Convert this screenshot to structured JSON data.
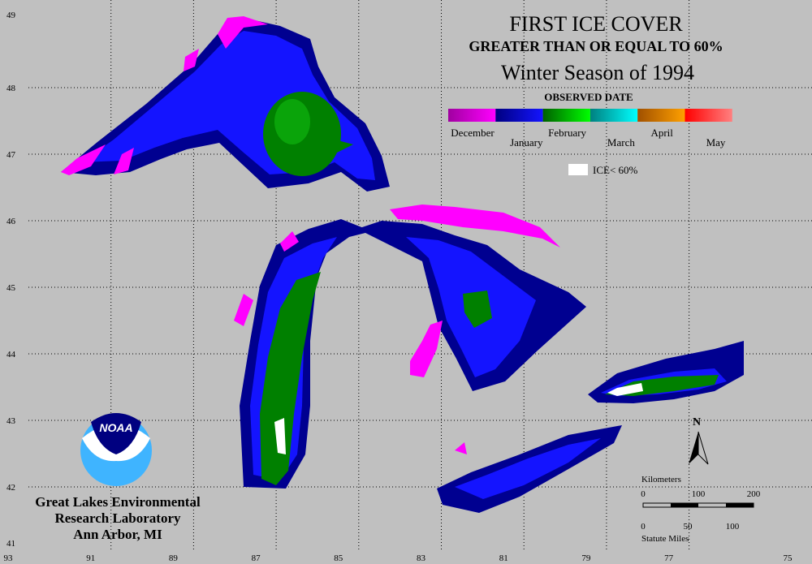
{
  "title": "FIRST ICE COVER",
  "subtitle": "GREATER THAN OR EQUAL TO 60%",
  "season": "Winter Season of 1994",
  "legend": {
    "title": "OBSERVED DATE",
    "months": [
      "December",
      "January",
      "February",
      "March",
      "April",
      "May"
    ],
    "ice_note": "ICE< 60%"
  },
  "longitudes": [
    "93",
    "91",
    "89",
    "87",
    "85",
    "83",
    "81",
    "79",
    "77",
    "75"
  ],
  "latitudes": [
    "49",
    "48",
    "47",
    "46",
    "45",
    "44",
    "43",
    "42",
    "41"
  ],
  "logo": "NOAA",
  "lab": [
    "Great Lakes Environmental",
    "Research Laboratory",
    "Ann Arbor, MI"
  ],
  "north": "N",
  "scale": {
    "km_label": "Kilometers",
    "km_ticks": [
      "0",
      "100",
      "200"
    ],
    "mi_label": "Statute Miles",
    "mi_ticks": [
      "0",
      "50",
      "100"
    ]
  }
}
